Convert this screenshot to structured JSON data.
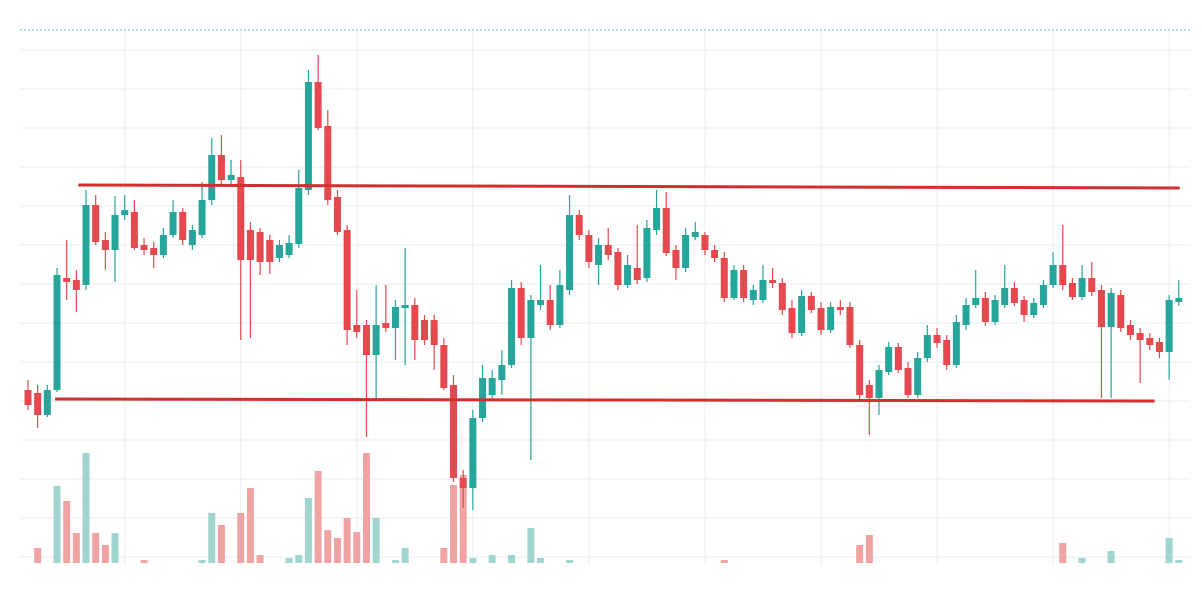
{
  "chart_data": {
    "type": "candlestick",
    "open": [
      167,
      164,
      142,
      167,
      279,
      277,
      272,
      352,
      317,
      307,
      342,
      345,
      312,
      309,
      302,
      322,
      345,
      312,
      322,
      357,
      402,
      377,
      380,
      327,
      325,
      317,
      299,
      302,
      313,
      367,
      475,
      431,
      360,
      327,
      232,
      232,
      202,
      234,
      229,
      249,
      252,
      237,
      237,
      212,
      172,
      79,
      69,
      139,
      162,
      177,
      192,
      269,
      219,
      252,
      257,
      232,
      267,
      342,
      322,
      292,
      312,
      305,
      272,
      289,
      279,
      327,
      349,
      307,
      289,
      320,
      322,
      307,
      299,
      259,
      287,
      257,
      257,
      277,
      274,
      249,
      224,
      261,
      249,
      227,
      250,
      250,
      212,
      172,
      159,
      185,
      210,
      189,
      162,
      199,
      222,
      217,
      192,
      232,
      252,
      259,
      235,
      252,
      269,
      257,
      242,
      252,
      272,
      292,
      274,
      260,
      279,
      267,
      230,
      262,
      232,
      224,
      219,
      215,
      205,
      255
    ],
    "high": [
      177,
      172,
      172,
      289,
      317,
      287,
      367,
      362,
      325,
      361,
      362,
      357,
      319,
      315,
      329,
      357,
      349,
      332,
      375,
      419,
      422,
      397,
      397,
      335,
      329,
      322,
      317,
      322,
      387,
      487,
      502,
      447,
      367,
      332,
      267,
      237,
      272,
      272,
      257,
      309,
      259,
      242,
      242,
      219,
      182,
      87,
      147,
      192,
      187,
      207,
      277,
      275,
      262,
      292,
      272,
      287,
      362,
      347,
      327,
      319,
      329,
      309,
      302,
      332,
      337,
      367,
      365,
      312,
      329,
      335,
      325,
      312,
      305,
      292,
      292,
      272,
      292,
      289,
      279,
      257,
      267,
      265,
      255,
      255,
      257,
      255,
      217,
      177,
      192,
      215,
      214,
      195,
      205,
      232,
      229,
      222,
      242,
      259,
      287,
      265,
      262,
      292,
      275,
      261,
      259,
      277,
      305,
      332,
      279,
      292,
      295,
      272,
      269,
      267,
      237,
      229,
      224,
      219,
      262,
      277
    ],
    "low": [
      147,
      129,
      140,
      165,
      257,
      245,
      267,
      312,
      287,
      275,
      337,
      307,
      302,
      289,
      299,
      319,
      312,
      307,
      319,
      352,
      372,
      372,
      217,
      219,
      282,
      283,
      295,
      299,
      309,
      362,
      427,
      352,
      322,
      212,
      219,
      120,
      157,
      225,
      197,
      192,
      197,
      212,
      187,
      167,
      75,
      49,
      47,
      135,
      159,
      162,
      189,
      212,
      97,
      247,
      227,
      229,
      262,
      317,
      289,
      272,
      297,
      267,
      269,
      273,
      275,
      322,
      301,
      277,
      285,
      317,
      302,
      295,
      255,
      257,
      255,
      252,
      254,
      269,
      242,
      219,
      221,
      244,
      222,
      224,
      242,
      209,
      157,
      122,
      142,
      182,
      184,
      159,
      159,
      195,
      209,
      187,
      189,
      227,
      249,
      231,
      232,
      249,
      251,
      235,
      239,
      249,
      269,
      267,
      257,
      257,
      261,
      159,
      159,
      225,
      217,
      174,
      207,
      199,
      177,
      251
    ],
    "close": [
      152,
      142,
      167,
      282,
      275,
      267,
      352,
      315,
      307,
      342,
      347,
      309,
      307,
      302,
      322,
      345,
      317,
      327,
      357,
      402,
      377,
      382,
      297,
      297,
      295,
      295,
      312,
      314,
      369,
      475,
      429,
      357,
      325,
      227,
      225,
      202,
      232,
      229,
      250,
      252,
      217,
      217,
      212,
      169,
      79,
      69,
      139,
      179,
      179,
      192,
      269,
      219,
      257,
      257,
      232,
      272,
      342,
      322,
      295,
      312,
      302,
      272,
      292,
      277,
      329,
      349,
      304,
      289,
      322,
      325,
      307,
      299,
      259,
      287,
      259,
      267,
      277,
      274,
      247,
      224,
      261,
      247,
      227,
      250,
      247,
      212,
      162,
      159,
      187,
      210,
      187,
      162,
      199,
      222,
      214,
      192,
      235,
      252,
      259,
      235,
      257,
      269,
      254,
      242,
      254,
      272,
      292,
      272,
      260,
      279,
      265,
      230,
      264,
      229,
      222,
      217,
      212,
      205,
      257,
      259
    ],
    "volume": [
      0,
      15,
      0,
      77,
      62,
      30,
      110,
      30,
      18,
      30,
      0,
      0,
      3,
      0,
      0,
      0,
      0,
      0,
      3,
      50,
      38,
      0,
      50,
      75,
      8,
      0,
      0,
      5,
      8,
      65,
      92,
      33,
      25,
      45,
      31,
      110,
      45,
      0,
      3,
      15,
      0,
      0,
      0,
      15,
      78,
      88,
      5,
      0,
      8,
      0,
      8,
      0,
      35,
      5,
      0,
      0,
      3,
      0,
      0,
      0,
      0,
      0,
      0,
      0,
      0,
      0,
      0,
      0,
      0,
      0,
      0,
      0,
      3,
      0,
      0,
      0,
      0,
      0,
      0,
      0,
      0,
      0,
      0,
      0,
      0,
      0,
      18,
      28,
      0,
      0,
      0,
      0,
      0,
      0,
      0,
      0,
      0,
      0,
      0,
      0,
      0,
      0,
      0,
      0,
      0,
      0,
      0,
      20,
      0,
      5,
      0,
      0,
      12,
      0,
      0,
      0,
      0,
      0,
      25,
      3
    ],
    "up_color": "#26a69a",
    "down_color": "#e5484d",
    "up_volume_color": "#9fd4cf",
    "down_volume_color": "#f0a3a3",
    "xlim": [
      -0.31,
      121.4
    ],
    "xticks": [
      10,
      22,
      34,
      46,
      58,
      70,
      82,
      94,
      106,
      118
    ],
    "ylim": [
      0,
      550
    ],
    "yticks": [
      0,
      39,
      78,
      117,
      156,
      195,
      234,
      273,
      312,
      351,
      390,
      429,
      468,
      507
    ],
    "y2lim": [
      0,
      120
    ],
    "grid": true,
    "lines": [
      {
        "x": [
          5.2,
          119.1
        ],
        "y": [
          372,
          369
        ]
      },
      {
        "x": [
          2.8,
          116.5
        ],
        "y": [
          158,
          156
        ]
      }
    ],
    "line_color": "#d32f2f"
  }
}
